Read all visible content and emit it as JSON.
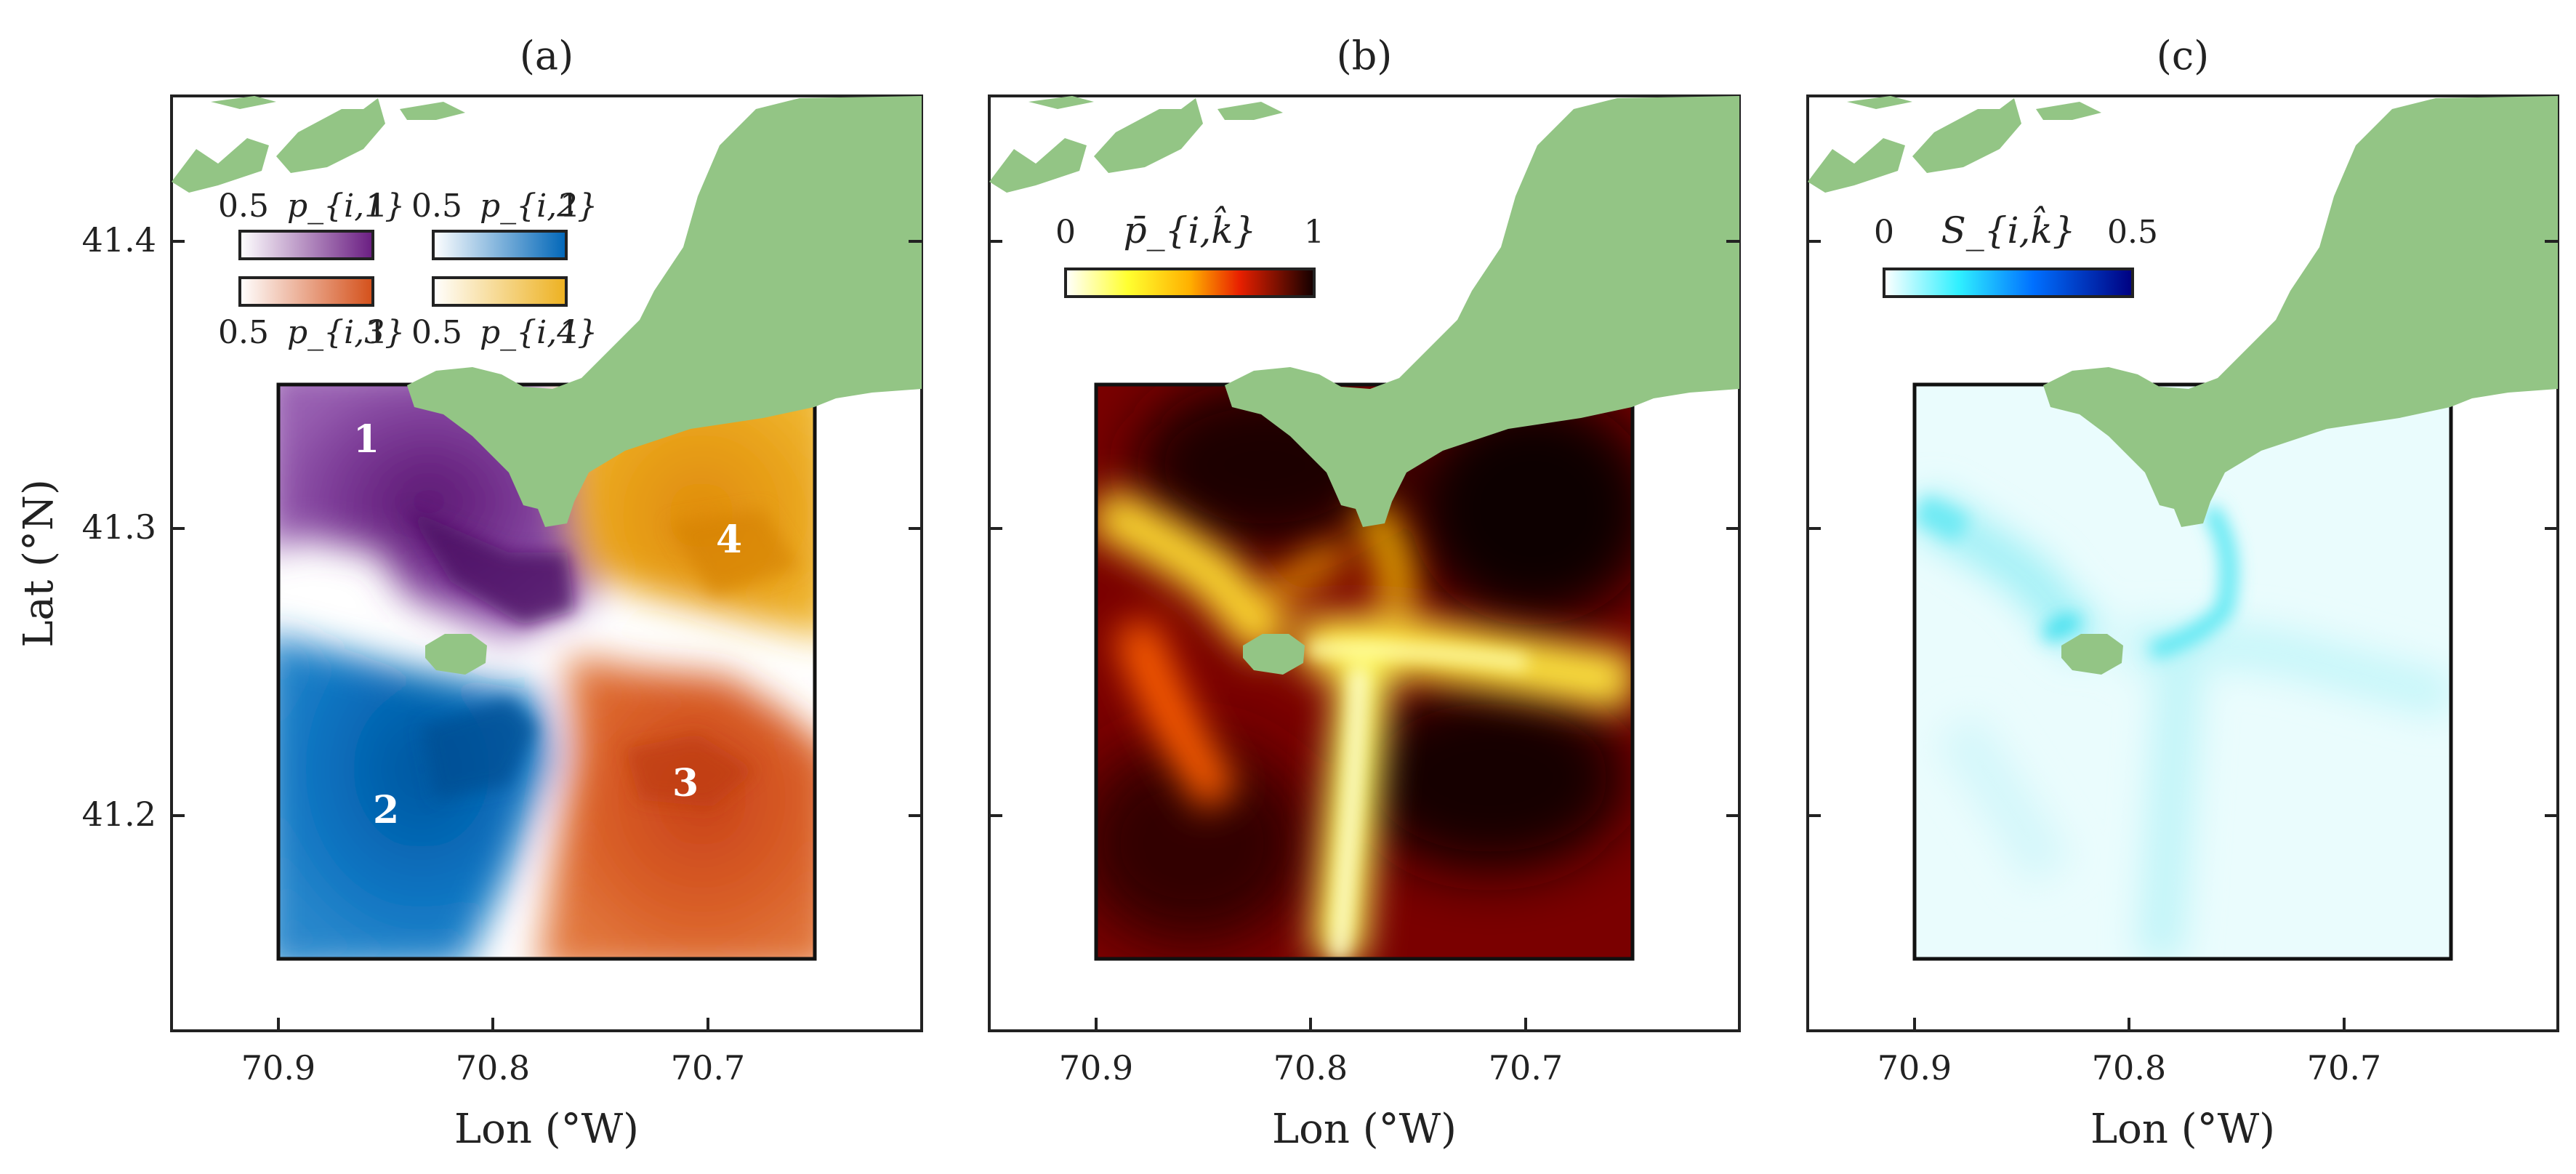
{
  "chart_data": [
    {
      "panel": "(a)",
      "type": "heatmap",
      "xlabel": "Lon (°W)",
      "ylabel": "Lat (°N)",
      "xlim": [
        70.95,
        70.6
      ],
      "ylim": [
        41.125,
        41.45
      ],
      "xticks": [
        "70.9",
        "70.8",
        "70.7"
      ],
      "yticks": [
        "41.2",
        "41.3",
        "41.4"
      ],
      "domain_box": {
        "lon": [
          70.9,
          70.65
        ],
        "lat": [
          41.15,
          41.35
        ]
      },
      "colorbars": [
        {
          "symbol": "p_{i,1}",
          "min": "0.5",
          "max": "1",
          "color": "#6a1d82"
        },
        {
          "symbol": "p_{i,2}",
          "min": "0.5",
          "max": "1",
          "color": "#0066b8"
        },
        {
          "symbol": "p_{i,3}",
          "min": "0.5",
          "max": "1",
          "color": "#d9541a"
        },
        {
          "symbol": "p_{i,4}",
          "min": "0.5",
          "max": "1",
          "color": "#edb120"
        }
      ],
      "region_labels": [
        {
          "text": "1",
          "lon": 70.86,
          "lat": 41.33
        },
        {
          "text": "2",
          "lon": 70.85,
          "lat": 41.2
        },
        {
          "text": "3",
          "lon": 70.71,
          "lat": 41.21
        },
        {
          "text": "4",
          "lon": 70.69,
          "lat": 41.295
        }
      ]
    },
    {
      "panel": "(b)",
      "type": "heatmap",
      "xlabel": "Lon (°W)",
      "xticks": [
        "70.9",
        "70.8",
        "70.7"
      ],
      "colorbar": {
        "symbol": "p̄_{i,k̂}",
        "min": "0",
        "max": "1",
        "colormap": "hot"
      }
    },
    {
      "panel": "(c)",
      "type": "heatmap",
      "xlabel": "Lon (°W)",
      "xticks": [
        "70.9",
        "70.8",
        "70.7"
      ],
      "colorbar": {
        "symbol": "S_{i,k̂}",
        "min": "0",
        "max": "0.5",
        "colormap": "white-cyan-blue"
      }
    }
  ],
  "colors": {
    "land": "#93c585",
    "frame": "#222222"
  }
}
